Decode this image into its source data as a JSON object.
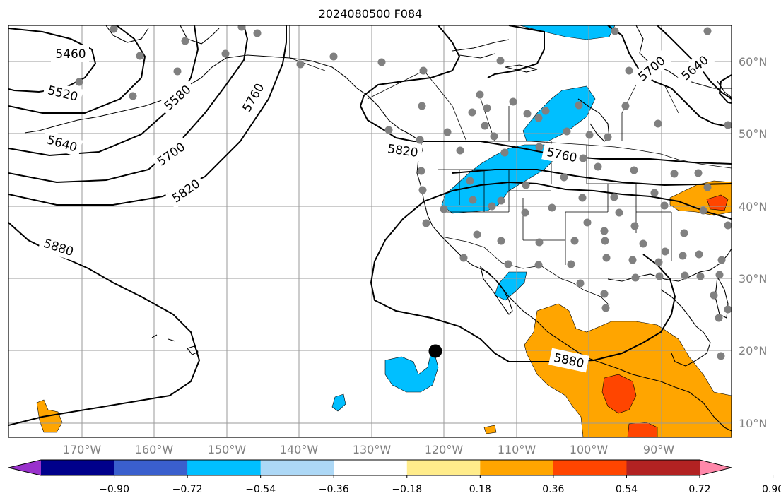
{
  "title": "2024080500 F084",
  "lon_labels": [
    "170°W",
    "160°W",
    "150°W",
    "140°W",
    "130°W",
    "120°W",
    "110°W",
    "100°W",
    "90°W"
  ],
  "lat_labels": [
    "60°N",
    "50°N",
    "40°N",
    "30°N",
    "20°N",
    "10°N"
  ],
  "contour_labels": [
    "5460",
    "5520",
    "5580",
    "5640",
    "5700",
    "5760",
    "5820",
    "5880",
    "5820",
    "5760",
    "5880",
    "5700",
    "5640"
  ],
  "colorbar": {
    "ticks": [
      "−0.90",
      "−0.72",
      "−0.54",
      "−0.36",
      "−0.18",
      "0.18",
      "0.36",
      "0.54",
      "0.72",
      "0.90"
    ],
    "colors": [
      "#9932cc",
      "#00008b",
      "#3a5fcd",
      "#00bfff",
      "#add8f6",
      "#ffffff",
      "#ffec8b",
      "#ffa500",
      "#ff4500",
      "#b22222",
      "#ff88aa"
    ]
  },
  "fill_colors": {
    "neg_036": "#00bfff",
    "pos_036": "#ffa500",
    "pos_054": "#ff4500",
    "station_dot": "#808080"
  }
}
